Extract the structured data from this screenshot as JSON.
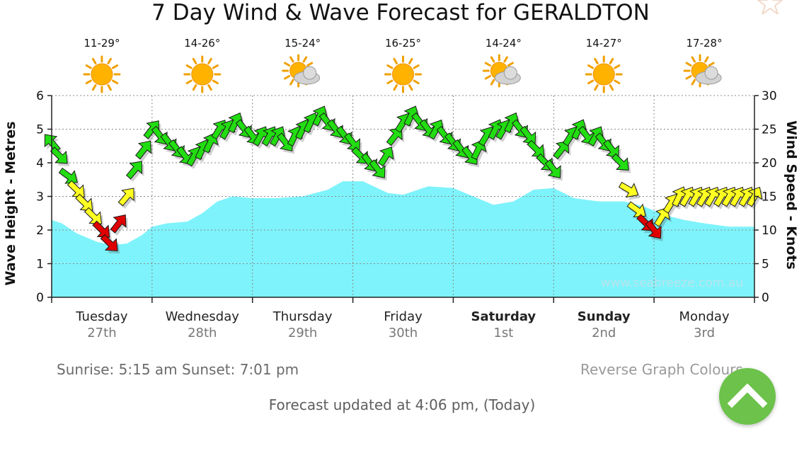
{
  "chart_data": {
    "type": "line",
    "title": "7 Day Wind & Wave Forecast for GERALDTON",
    "ylabel": "Wave Height - Metres",
    "y2label": "Wind Speed - Knots",
    "ylim": [
      0,
      6
    ],
    "y2lim": [
      0,
      30
    ],
    "y_ticks": [
      "0",
      "1",
      "2",
      "3",
      "4",
      "5",
      "6"
    ],
    "y2_ticks": [
      "0",
      "5",
      "10",
      "15",
      "20",
      "25",
      "30"
    ],
    "watermark": "www.seabreeze.com.au",
    "grid": true,
    "days": [
      {
        "day": "Tuesday",
        "date": "27th",
        "temp": "11-29°",
        "weather": "sunny-icon",
        "bold": false
      },
      {
        "day": "Wednesday",
        "date": "28th",
        "temp": "14-26°",
        "weather": "sunny-icon",
        "bold": false
      },
      {
        "day": "Thursday",
        "date": "29th",
        "temp": "15-24°",
        "weather": "partly-cloudy-icon",
        "bold": false
      },
      {
        "day": "Friday",
        "date": "30th",
        "temp": "16-25°",
        "weather": "sunny-icon",
        "bold": false
      },
      {
        "day": "Saturday",
        "date": "1st",
        "temp": "14-24°",
        "weather": "partly-cloudy-icon",
        "bold": true
      },
      {
        "day": "Sunday",
        "date": "2nd",
        "temp": "14-27°",
        "weather": "sunny-icon",
        "bold": true
      },
      {
        "day": "Monday",
        "date": "3rd",
        "temp": "17-28°",
        "weather": "partly-cloudy-icon",
        "bold": false
      }
    ],
    "series": [
      {
        "type": "area",
        "color": "#7ef3fb",
        "x": [
          0,
          0.1,
          0.25,
          0.45,
          0.6,
          0.75,
          0.9,
          1.0,
          1.15,
          1.35,
          1.5,
          1.65,
          1.8,
          2.0,
          2.25,
          2.5,
          2.75,
          2.9,
          3.1,
          3.35,
          3.5,
          3.75,
          4.0,
          4.2,
          4.4,
          4.6,
          4.8,
          5.0,
          5.2,
          5.45,
          5.7,
          5.9,
          6.1,
          6.3,
          6.5,
          6.75,
          6.95,
          7.0
        ],
        "values": [
          2.3,
          2.2,
          1.9,
          1.65,
          1.55,
          1.6,
          1.85,
          2.1,
          2.2,
          2.25,
          2.5,
          2.85,
          3.0,
          2.95,
          2.95,
          3.0,
          3.2,
          3.45,
          3.45,
          3.1,
          3.05,
          3.3,
          3.25,
          3.0,
          2.75,
          2.85,
          3.2,
          3.25,
          2.95,
          2.85,
          2.85,
          2.7,
          2.45,
          2.3,
          2.2,
          2.1,
          2.1,
          2.1
        ]
      },
      {
        "type": "wind-arrows",
        "x": [
          0.0,
          0.08,
          0.17,
          0.25,
          0.33,
          0.42,
          0.5,
          0.58,
          0.67,
          0.75,
          0.83,
          0.92,
          1.0,
          1.08,
          1.17,
          1.25,
          1.33,
          1.42,
          1.5,
          1.58,
          1.67,
          1.75,
          1.83,
          1.92,
          2.0,
          2.08,
          2.17,
          2.25,
          2.33,
          2.42,
          2.5,
          2.58,
          2.67,
          2.75,
          2.83,
          2.92,
          3.0,
          3.08,
          3.17,
          3.25,
          3.33,
          3.42,
          3.5,
          3.58,
          3.67,
          3.75,
          3.83,
          3.92,
          4.0,
          4.08,
          4.17,
          4.25,
          4.33,
          4.42,
          4.5,
          4.58,
          4.67,
          4.75,
          4.83,
          4.92,
          5.0,
          5.08,
          5.17,
          5.25,
          5.33,
          5.42,
          5.5,
          5.58,
          5.67,
          5.75,
          5.83,
          5.92,
          6.0,
          6.08,
          6.17,
          6.25,
          6.33,
          6.42,
          6.5,
          6.58,
          6.67,
          6.75,
          6.83,
          6.92,
          7.0
        ],
        "values": [
          23,
          21,
          18,
          16,
          14,
          12,
          10,
          8,
          11,
          15,
          19,
          22,
          25,
          24,
          23,
          22,
          21,
          21,
          22,
          23,
          25,
          25,
          26,
          25,
          24,
          24,
          24,
          24,
          23,
          24,
          25,
          26,
          27,
          26,
          25,
          24,
          23,
          21,
          20,
          19,
          21,
          24,
          26,
          27,
          26,
          25,
          25,
          24,
          23,
          22,
          21,
          22,
          24,
          25,
          25,
          26,
          25,
          24,
          22,
          20,
          19,
          22,
          24,
          25,
          24,
          24,
          23,
          22,
          20,
          16,
          13,
          11,
          10,
          12,
          14,
          15,
          15,
          15,
          15,
          15,
          15,
          15,
          15,
          15,
          15
        ]
      }
    ],
    "wind_colors": {
      "green": "#22dd11",
      "yellow": "#ffff22",
      "red": "#e00000"
    }
  },
  "footer": {
    "sunrise": "Sunrise: 5:15 am  Sunset: 7:01 pm",
    "reverse": "Reverse Graph Colours",
    "updated": "Forecast updated at 4:06 pm, (Today)"
  }
}
